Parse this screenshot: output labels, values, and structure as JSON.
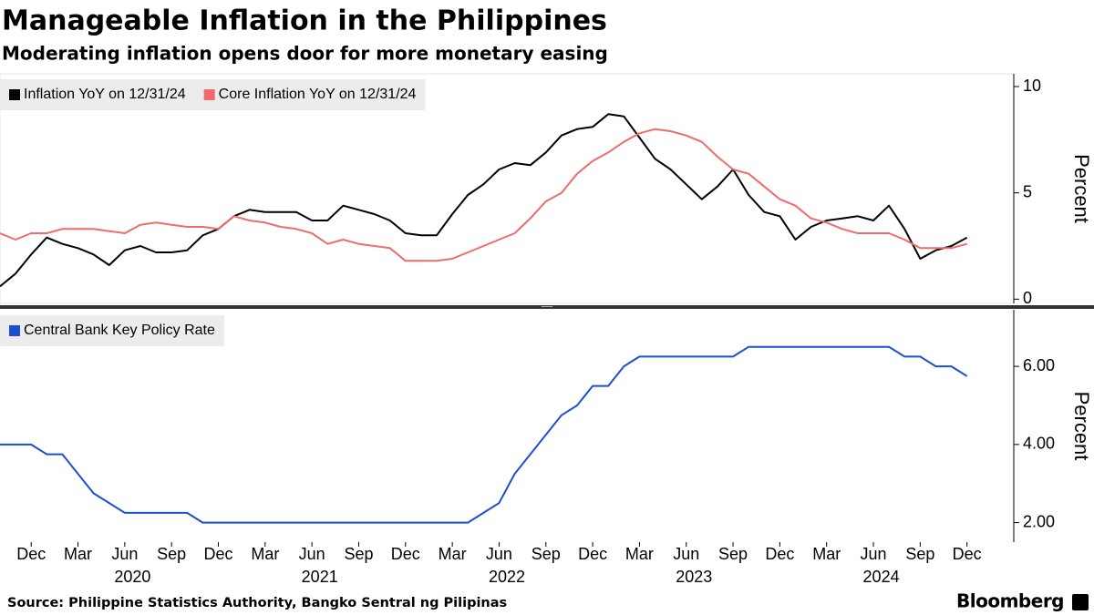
{
  "title": "Manageable Inflation in the Philippines",
  "subtitle": "Moderating inflation opens door for more monetary easing",
  "source": "Source: Philippine Statistics Authority, Bangko Sentral ng Pilipinas",
  "brand": "Bloomberg",
  "chart_data": [
    {
      "type": "line",
      "x": [
        "2019-10",
        "2019-11",
        "2019-12",
        "2020-01",
        "2020-02",
        "2020-03",
        "2020-04",
        "2020-05",
        "2020-06",
        "2020-07",
        "2020-08",
        "2020-09",
        "2020-10",
        "2020-11",
        "2020-12",
        "2021-01",
        "2021-02",
        "2021-03",
        "2021-04",
        "2021-05",
        "2021-06",
        "2021-07",
        "2021-08",
        "2021-09",
        "2021-10",
        "2021-11",
        "2021-12",
        "2022-01",
        "2022-02",
        "2022-03",
        "2022-04",
        "2022-05",
        "2022-06",
        "2022-07",
        "2022-08",
        "2022-09",
        "2022-10",
        "2022-11",
        "2022-12",
        "2023-01",
        "2023-02",
        "2023-03",
        "2023-04",
        "2023-05",
        "2023-06",
        "2023-07",
        "2023-08",
        "2023-09",
        "2023-10",
        "2023-11",
        "2023-12",
        "2024-01",
        "2024-02",
        "2024-03",
        "2024-04",
        "2024-05",
        "2024-06",
        "2024-07",
        "2024-08",
        "2024-09",
        "2024-10",
        "2024-11",
        "2024-12"
      ],
      "series": [
        {
          "name": "Inflation YoY on 12/31/24",
          "color": "#000000",
          "values": [
            0.6,
            1.2,
            2.1,
            2.9,
            2.6,
            2.4,
            2.1,
            1.6,
            2.3,
            2.5,
            2.2,
            2.2,
            2.3,
            3.0,
            3.3,
            3.9,
            4.2,
            4.1,
            4.1,
            4.1,
            3.7,
            3.7,
            4.4,
            4.2,
            4.0,
            3.7,
            3.1,
            3.0,
            3.0,
            4.0,
            4.9,
            5.4,
            6.1,
            6.4,
            6.3,
            6.9,
            7.7,
            8.0,
            8.1,
            8.7,
            8.6,
            7.6,
            6.6,
            6.1,
            5.4,
            4.7,
            5.3,
            6.1,
            4.9,
            4.1,
            3.9,
            2.8,
            3.4,
            3.7,
            3.8,
            3.9,
            3.7,
            4.4,
            3.3,
            1.9,
            2.3,
            2.5,
            2.9
          ]
        },
        {
          "name": "Core Inflation YoY on 12/31/24",
          "color": "#f06b6b",
          "values": [
            3.1,
            2.8,
            3.1,
            3.1,
            3.3,
            3.3,
            3.3,
            3.2,
            3.1,
            3.5,
            3.6,
            3.5,
            3.4,
            3.4,
            3.3,
            3.9,
            3.7,
            3.6,
            3.4,
            3.3,
            3.1,
            2.6,
            2.8,
            2.6,
            2.5,
            2.4,
            1.8,
            1.8,
            1.8,
            1.9,
            2.2,
            2.5,
            2.8,
            3.1,
            3.8,
            4.6,
            5.0,
            5.9,
            6.5,
            6.9,
            7.4,
            7.8,
            8.0,
            7.9,
            7.7,
            7.4,
            6.7,
            6.1,
            5.9,
            5.3,
            4.7,
            4.4,
            3.8,
            3.6,
            3.3,
            3.1,
            3.1,
            3.1,
            2.8,
            2.4,
            2.4,
            2.4,
            2.6
          ]
        }
      ],
      "xlim": [
        "2019-10",
        "2025-03"
      ],
      "ylim": [
        -0.2,
        10.6
      ],
      "yticks": [
        0,
        5,
        10
      ],
      "y_label": "Percent",
      "legend": "upper left"
    },
    {
      "type": "line",
      "x": [
        "2019-10",
        "2019-11",
        "2019-12",
        "2020-01",
        "2020-02",
        "2020-03",
        "2020-04",
        "2020-05",
        "2020-06",
        "2020-07",
        "2020-08",
        "2020-09",
        "2020-10",
        "2020-11",
        "2020-12",
        "2021-01",
        "2021-02",
        "2021-03",
        "2021-04",
        "2021-05",
        "2021-06",
        "2021-07",
        "2021-08",
        "2021-09",
        "2021-10",
        "2021-11",
        "2021-12",
        "2022-01",
        "2022-02",
        "2022-03",
        "2022-04",
        "2022-05",
        "2022-06",
        "2022-07",
        "2022-08",
        "2022-09",
        "2022-10",
        "2022-11",
        "2022-12",
        "2023-01",
        "2023-02",
        "2023-03",
        "2023-04",
        "2023-05",
        "2023-06",
        "2023-07",
        "2023-08",
        "2023-09",
        "2023-10",
        "2023-11",
        "2023-12",
        "2024-01",
        "2024-02",
        "2024-03",
        "2024-04",
        "2024-05",
        "2024-06",
        "2024-07",
        "2024-08",
        "2024-09",
        "2024-10",
        "2024-11",
        "2024-12"
      ],
      "series": [
        {
          "name": "Central Bank Key Policy Rate",
          "color": "#1f4fd1",
          "values": [
            4.0,
            4.0,
            4.0,
            3.75,
            3.75,
            3.25,
            2.75,
            2.5,
            2.25,
            2.25,
            2.25,
            2.25,
            2.25,
            2.0,
            2.0,
            2.0,
            2.0,
            2.0,
            2.0,
            2.0,
            2.0,
            2.0,
            2.0,
            2.0,
            2.0,
            2.0,
            2.0,
            2.0,
            2.0,
            2.0,
            2.0,
            2.25,
            2.5,
            3.25,
            3.75,
            4.25,
            4.75,
            5.0,
            5.5,
            5.5,
            6.0,
            6.25,
            6.25,
            6.25,
            6.25,
            6.25,
            6.25,
            6.25,
            6.5,
            6.5,
            6.5,
            6.5,
            6.5,
            6.5,
            6.5,
            6.5,
            6.5,
            6.5,
            6.25,
            6.25,
            6.0,
            6.0,
            5.75
          ]
        }
      ],
      "xlim": [
        "2019-10",
        "2025-03"
      ],
      "xticks": [
        {
          "value": "2019-12",
          "label": "Dec"
        },
        {
          "value": "2020-03",
          "label": "Mar"
        },
        {
          "value": "2020-06",
          "label": "Jun"
        },
        {
          "value": "2020-09",
          "label": "Sep"
        },
        {
          "value": "2020-12",
          "label": "Dec"
        },
        {
          "value": "2021-03",
          "label": "Mar"
        },
        {
          "value": "2021-06",
          "label": "Jun"
        },
        {
          "value": "2021-09",
          "label": "Sep"
        },
        {
          "value": "2021-12",
          "label": "Dec"
        },
        {
          "value": "2022-03",
          "label": "Mar"
        },
        {
          "value": "2022-06",
          "label": "Jun"
        },
        {
          "value": "2022-09",
          "label": "Sep"
        },
        {
          "value": "2022-12",
          "label": "Dec"
        },
        {
          "value": "2023-03",
          "label": "Mar"
        },
        {
          "value": "2023-06",
          "label": "Jun"
        },
        {
          "value": "2023-09",
          "label": "Sep"
        },
        {
          "value": "2023-12",
          "label": "Dec"
        },
        {
          "value": "2024-03",
          "label": "Mar"
        },
        {
          "value": "2024-06",
          "label": "Jun"
        },
        {
          "value": "2024-09",
          "label": "Sep"
        },
        {
          "value": "2024-12",
          "label": "Dec"
        }
      ],
      "x_years": [
        "2020",
        "2021",
        "2022",
        "2023",
        "2024"
      ],
      "ylim": [
        1.5,
        7.45
      ],
      "yticks": [
        {
          "value": 2,
          "label": "2.00"
        },
        {
          "value": 4,
          "label": "4.00"
        },
        {
          "value": 6,
          "label": "6.00"
        }
      ],
      "y_label": "Percent",
      "legend": "upper left"
    }
  ]
}
